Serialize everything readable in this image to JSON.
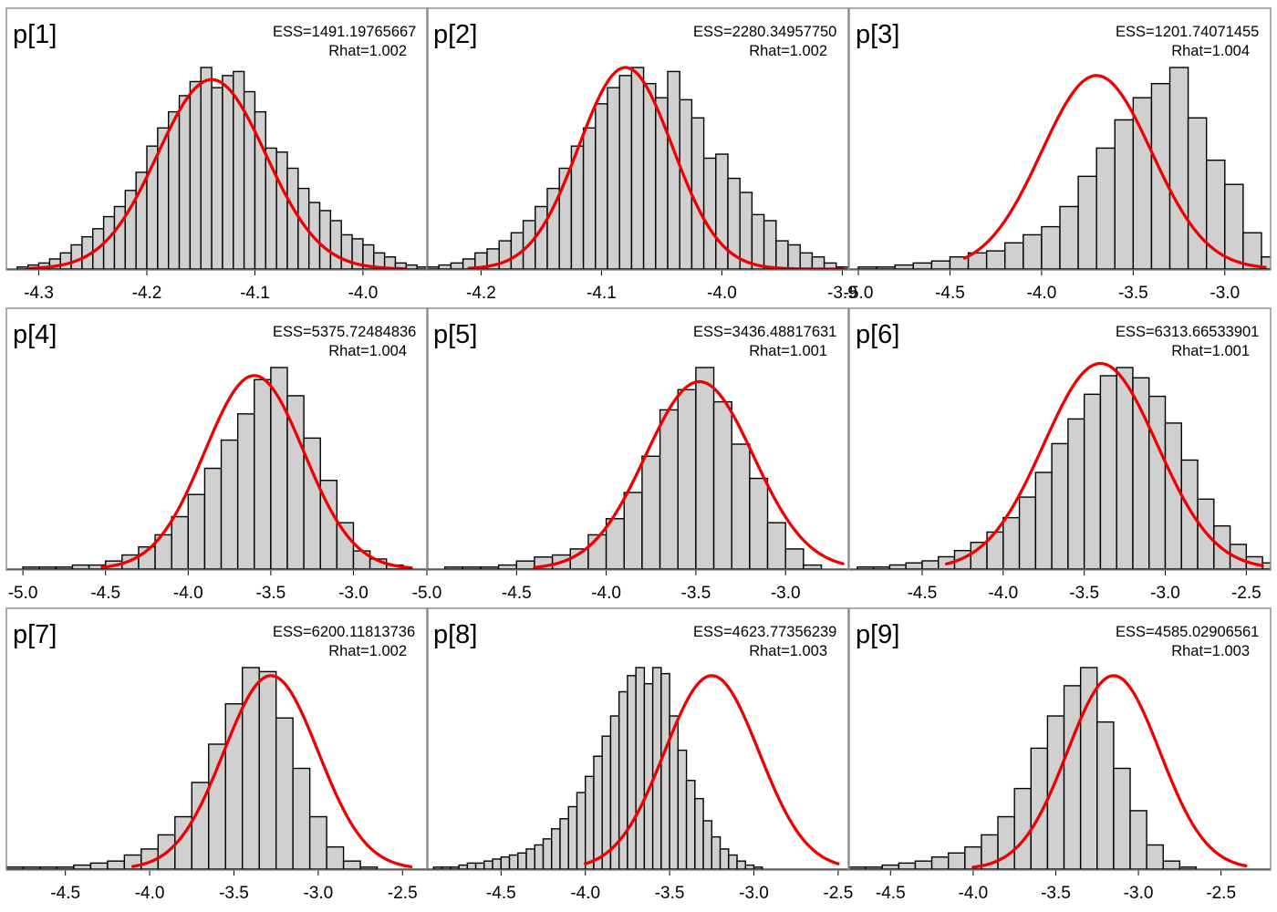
{
  "chart_data": [
    {
      "type": "bar",
      "title": "p[1]",
      "ess": "ESS=1491.19765667",
      "rhat": "Rhat=1.002",
      "xlim": [
        -4.33,
        -3.94
      ],
      "ticks": [
        "-4.3",
        "-4.2",
        "-4.1",
        "-4.0"
      ],
      "bin_start": -4.32,
      "bin_width": 0.01,
      "counts": [
        1,
        2,
        3,
        5,
        8,
        12,
        16,
        20,
        26,
        31,
        39,
        48,
        61,
        70,
        78,
        86,
        93,
        100,
        90,
        96,
        98,
        88,
        78,
        60,
        58,
        50,
        40,
        33,
        29,
        24,
        17,
        15,
        12,
        8,
        6,
        3,
        2,
        1,
        1
      ],
      "density": {
        "mean": -4.14,
        "sd": 0.05,
        "peak": 94,
        "from": -4.31,
        "to": -3.96
      }
    },
    {
      "type": "bar",
      "title": "p[2]",
      "ess": "ESS=2280.34957750",
      "rhat": "Rhat=1.002",
      "xlim": [
        -4.245,
        -3.895
      ],
      "ticks": [
        "-4.2",
        "-4.1",
        "-4.0",
        "-3.9"
      ],
      "bin_start": -4.245,
      "bin_width": 0.01,
      "counts": [
        1,
        2,
        3,
        5,
        8,
        10,
        14,
        18,
        24,
        31,
        40,
        50,
        61,
        70,
        82,
        90,
        96,
        100,
        92,
        85,
        98,
        84,
        75,
        55,
        57,
        45,
        38,
        27,
        24,
        14,
        12,
        8,
        6,
        3,
        1
      ],
      "density": {
        "mean": -4.08,
        "sd": 0.039,
        "peak": 100,
        "from": -4.21,
        "to": -3.9
      }
    },
    {
      "type": "bar",
      "title": "p[3]",
      "ess": "ESS=1201.74071455",
      "rhat": "Rhat=1.004",
      "xlim": [
        -5.05,
        -2.75
      ],
      "ticks": [
        "-5.0",
        "-4.5",
        "-4.0",
        "-3.5",
        "-3.0"
      ],
      "bin_start": -5.0,
      "bin_width": 0.1,
      "counts": [
        1,
        1,
        2,
        3,
        4,
        6,
        8,
        9,
        13,
        17,
        21,
        31,
        46,
        60,
        74,
        85,
        92,
        100,
        75,
        54,
        42,
        18,
        6,
        1
      ],
      "density": {
        "mean": -3.7,
        "sd": 0.3,
        "peak": 96,
        "from": -4.42,
        "to": -2.78
      }
    },
    {
      "type": "bar",
      "title": "p[4]",
      "ess": "ESS=5375.72484836",
      "rhat": "Rhat=1.004",
      "xlim": [
        -5.1,
        -2.55
      ],
      "ticks": [
        "-5.0",
        "-4.5",
        "-4.0",
        "-3.5",
        "-3.0"
      ],
      "bin_start": -5.0,
      "bin_width": 0.1,
      "counts": [
        1,
        1,
        1,
        2,
        2,
        4,
        7,
        11,
        17,
        26,
        37,
        50,
        64,
        77,
        94,
        100,
        86,
        65,
        44,
        23,
        9,
        5,
        2
      ],
      "density": {
        "mean": -3.6,
        "sd": 0.3,
        "peak": 96,
        "from": -4.52,
        "to": -2.65
      }
    },
    {
      "type": "bar",
      "title": "p[5]",
      "ess": "ESS=3436.48817631",
      "rhat": "Rhat=1.001",
      "xlim": [
        -5.0,
        -2.65
      ],
      "ticks": [
        "-5.0",
        "-4.5",
        "-4.0",
        "-3.5",
        "-3.0"
      ],
      "bin_start": -4.9,
      "bin_width": 0.1,
      "counts": [
        1,
        1,
        1,
        2,
        4,
        6,
        7,
        10,
        17,
        25,
        38,
        56,
        79,
        89,
        100,
        83,
        62,
        45,
        23,
        10,
        2
      ],
      "density": {
        "mean": -3.48,
        "sd": 0.3,
        "peak": 93,
        "from": -4.4,
        "to": -2.68
      }
    },
    {
      "type": "bar",
      "title": "p[6]",
      "ess": "ESS=6313.66533901",
      "rhat": "Rhat=1.001",
      "xlim": [
        -4.95,
        -2.35
      ],
      "ticks": [
        "-4.5",
        "-4.0",
        "-3.5",
        "-3.0",
        "-2.5"
      ],
      "bin_start": -4.9,
      "bin_width": 0.1,
      "counts": [
        1,
        1,
        2,
        3,
        4,
        6,
        9,
        13,
        18,
        25,
        35,
        47,
        61,
        73,
        85,
        94,
        98,
        93,
        84,
        71,
        53,
        34,
        21,
        12,
        6,
        3,
        1
      ],
      "density": {
        "mean": -3.4,
        "sd": 0.35,
        "peak": 100,
        "from": -4.35,
        "to": -2.4
      }
    },
    {
      "type": "bar",
      "title": "p[7]",
      "ess": "ESS=6200.11813736",
      "rhat": "Rhat=1.002",
      "xlim": [
        -4.85,
        -2.35
      ],
      "ticks": [
        "-4.5",
        "-4.0",
        "-3.5",
        "-3.0",
        "-2.5"
      ],
      "bin_start": -4.85,
      "bin_width": 0.1,
      "counts": [
        1,
        1,
        1,
        1,
        2,
        3,
        4,
        7,
        10,
        17,
        26,
        43,
        62,
        82,
        100,
        98,
        75,
        50,
        26,
        11,
        4,
        1
      ],
      "density": {
        "mean": -3.28,
        "sd": 0.28,
        "peak": 96,
        "from": -4.1,
        "to": -2.45
      }
    },
    {
      "type": "bar",
      "title": "p[8]",
      "ess": "ESS=4623.77356239",
      "rhat": "Rhat=1.003",
      "xlim": [
        -4.94,
        -2.44
      ],
      "ticks": [
        "-4.5",
        "-4.0",
        "-3.5",
        "-3.0",
        "-2.5"
      ],
      "bin_start": -4.9,
      "bin_width": 0.05,
      "counts": [
        1,
        1,
        1,
        2,
        3,
        3,
        4,
        5,
        6,
        7,
        8,
        10,
        12,
        15,
        20,
        25,
        31,
        38,
        46,
        56,
        66,
        76,
        88,
        96,
        100,
        92,
        100,
        97,
        76,
        59,
        44,
        35,
        24,
        16,
        10,
        7,
        4,
        2,
        1
      ],
      "density": {
        "mean": -3.25,
        "sd": 0.28,
        "peak": 96,
        "from": -4.0,
        "to": -2.5
      }
    },
    {
      "type": "bar",
      "title": "p[9]",
      "ess": "ESS=4585.02906561",
      "rhat": "Rhat=1.003",
      "xlim": [
        -4.75,
        -2.2
      ],
      "ticks": [
        "-4.5",
        "-4.0",
        "-3.5",
        "-3.0",
        "-2.5"
      ],
      "bin_start": -4.75,
      "bin_width": 0.1,
      "counts": [
        1,
        1,
        2,
        3,
        4,
        6,
        8,
        11,
        17,
        26,
        40,
        60,
        76,
        91,
        100,
        73,
        50,
        29,
        12,
        4,
        1
      ],
      "density": {
        "mean": -3.15,
        "sd": 0.28,
        "peak": 96,
        "from": -4.0,
        "to": -2.35
      }
    }
  ]
}
